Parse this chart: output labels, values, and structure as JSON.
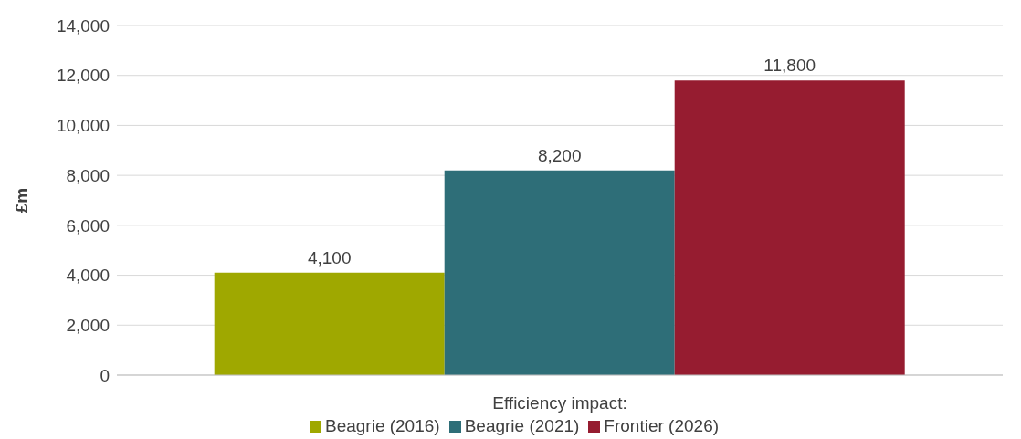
{
  "chart_data": {
    "type": "bar",
    "ylabel": "£m",
    "categories": [
      "Efficiency impact"
    ],
    "annotations": [
      ":"
    ],
    "series": [
      {
        "name": "Beagrie (2016)",
        "color": "#9fa800",
        "values": [
          4100
        ],
        "value_labels": [
          "4,100"
        ]
      },
      {
        "name": "Beagrie (2021)",
        "color": "#2e6e78",
        "values": [
          8200
        ],
        "value_labels": [
          "8,200"
        ]
      },
      {
        "name": "Frontier (2026)",
        "color": "#961c30",
        "values": [
          11800
        ],
        "value_labels": [
          "11,800"
        ]
      }
    ],
    "ylim": [
      0,
      14000
    ],
    "yticks": [
      0,
      {
        "value": 2000,
        "label": "2,000"
      },
      {
        "value": 4000,
        "label": "4,000"
      },
      {
        "value": 6000,
        "label": "6,000"
      },
      {
        "value": 8000,
        "label": "8,000"
      },
      {
        "value": 10000,
        "label": "10,000"
      },
      {
        "value": 12000,
        "label": "12,000"
      },
      {
        "value": 14000,
        "label": "14,000"
      }
    ],
    "grid": "y",
    "legend": "bottom"
  }
}
